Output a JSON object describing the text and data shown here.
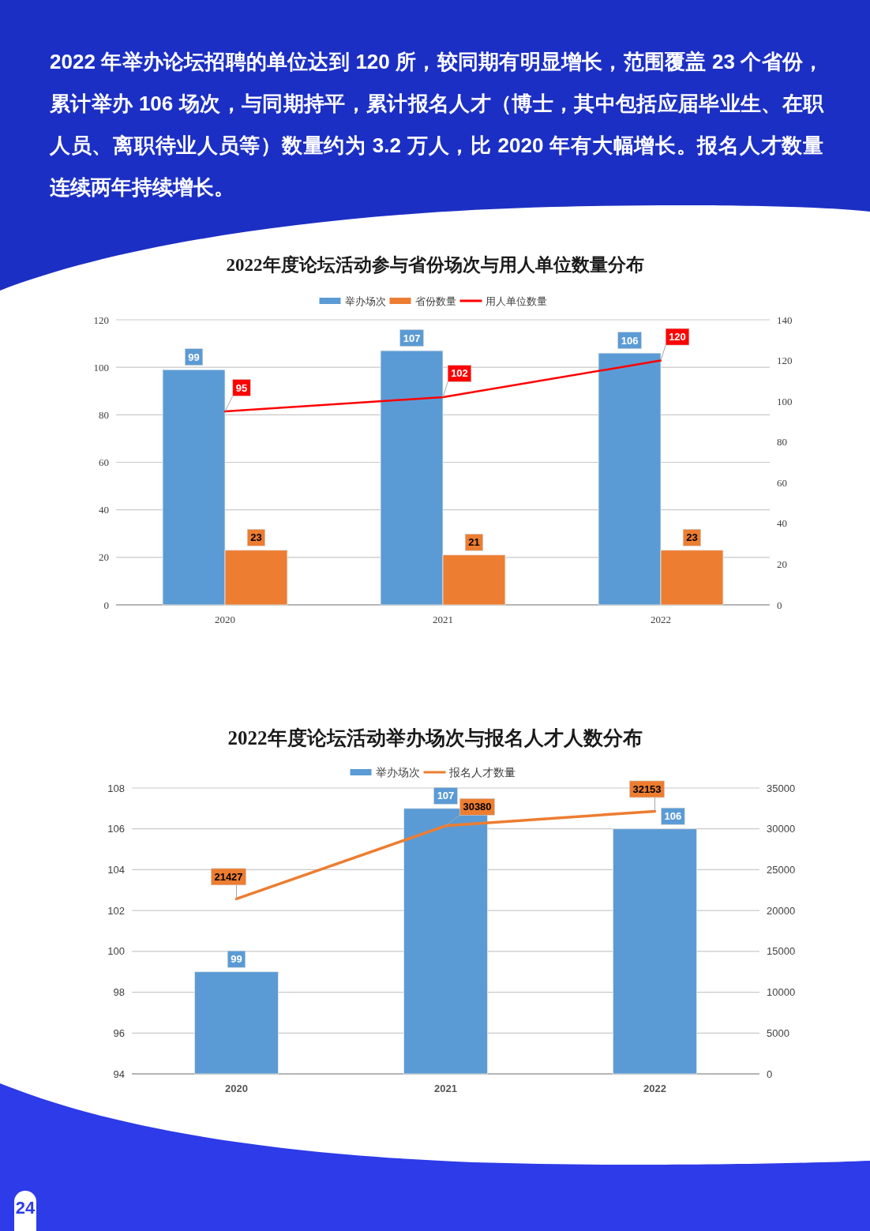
{
  "chart_data": [
    {
      "type": "other",
      "annotations": [
        "2022 年举办论坛招聘的单位达到 120 所，较同期有明显增长，范围覆盖 23 个省份，累计举办 106 场次，与同期持平，累计报名人才（博士，其中包括应届毕业生、在职人员、离职待业人员等）数量约为 3.2 万人，比 2020 年有大幅增长。报名人才数量连续两年持续增长。",
        "24"
      ]
    },
    {
      "type": "bar",
      "title": "2022年度论坛活动参与省份场次与用人单位数量分布",
      "categories": [
        "2020",
        "2021",
        "2022"
      ],
      "series": [
        {
          "name": "举办场次",
          "color": "#5b9bd5",
          "values": [
            99,
            107,
            106
          ]
        },
        {
          "name": "省份数量",
          "color": "#ed7d31",
          "values": [
            23,
            21,
            23
          ]
        },
        {
          "name": "用人单位数量",
          "type": "line",
          "axis": "y2",
          "color": "#ff0000",
          "values": [
            95,
            102,
            120
          ]
        }
      ],
      "ylim": [
        0,
        120
      ],
      "yticks": [
        0,
        20,
        40,
        60,
        80,
        100,
        120
      ],
      "y2lim": [
        0,
        140
      ],
      "y2ticks": [
        0,
        20,
        40,
        60,
        80,
        100,
        120,
        140
      ],
      "grid": "y",
      "legend": "top",
      "data_labels": true
    },
    {
      "type": "bar",
      "title": "2022年度论坛活动举办场次与报名人才人数分布",
      "categories": [
        "2020",
        "2021",
        "2022"
      ],
      "series": [
        {
          "name": "举办场次",
          "color": "#5b9bd5",
          "values": [
            99,
            107,
            106
          ]
        },
        {
          "name": "报名人才数量",
          "type": "line",
          "axis": "y2",
          "color": "#ed7d31",
          "values": [
            21427,
            30380,
            32153
          ]
        }
      ],
      "ylim": [
        94,
        108
      ],
      "yticks": [
        94,
        96,
        98,
        100,
        102,
        104,
        106,
        108
      ],
      "y2lim": [
        0,
        35000
      ],
      "y2ticks": [
        0,
        5000,
        10000,
        15000,
        20000,
        25000,
        30000,
        35000
      ],
      "grid": "y",
      "legend": "top",
      "data_labels": true
    }
  ]
}
